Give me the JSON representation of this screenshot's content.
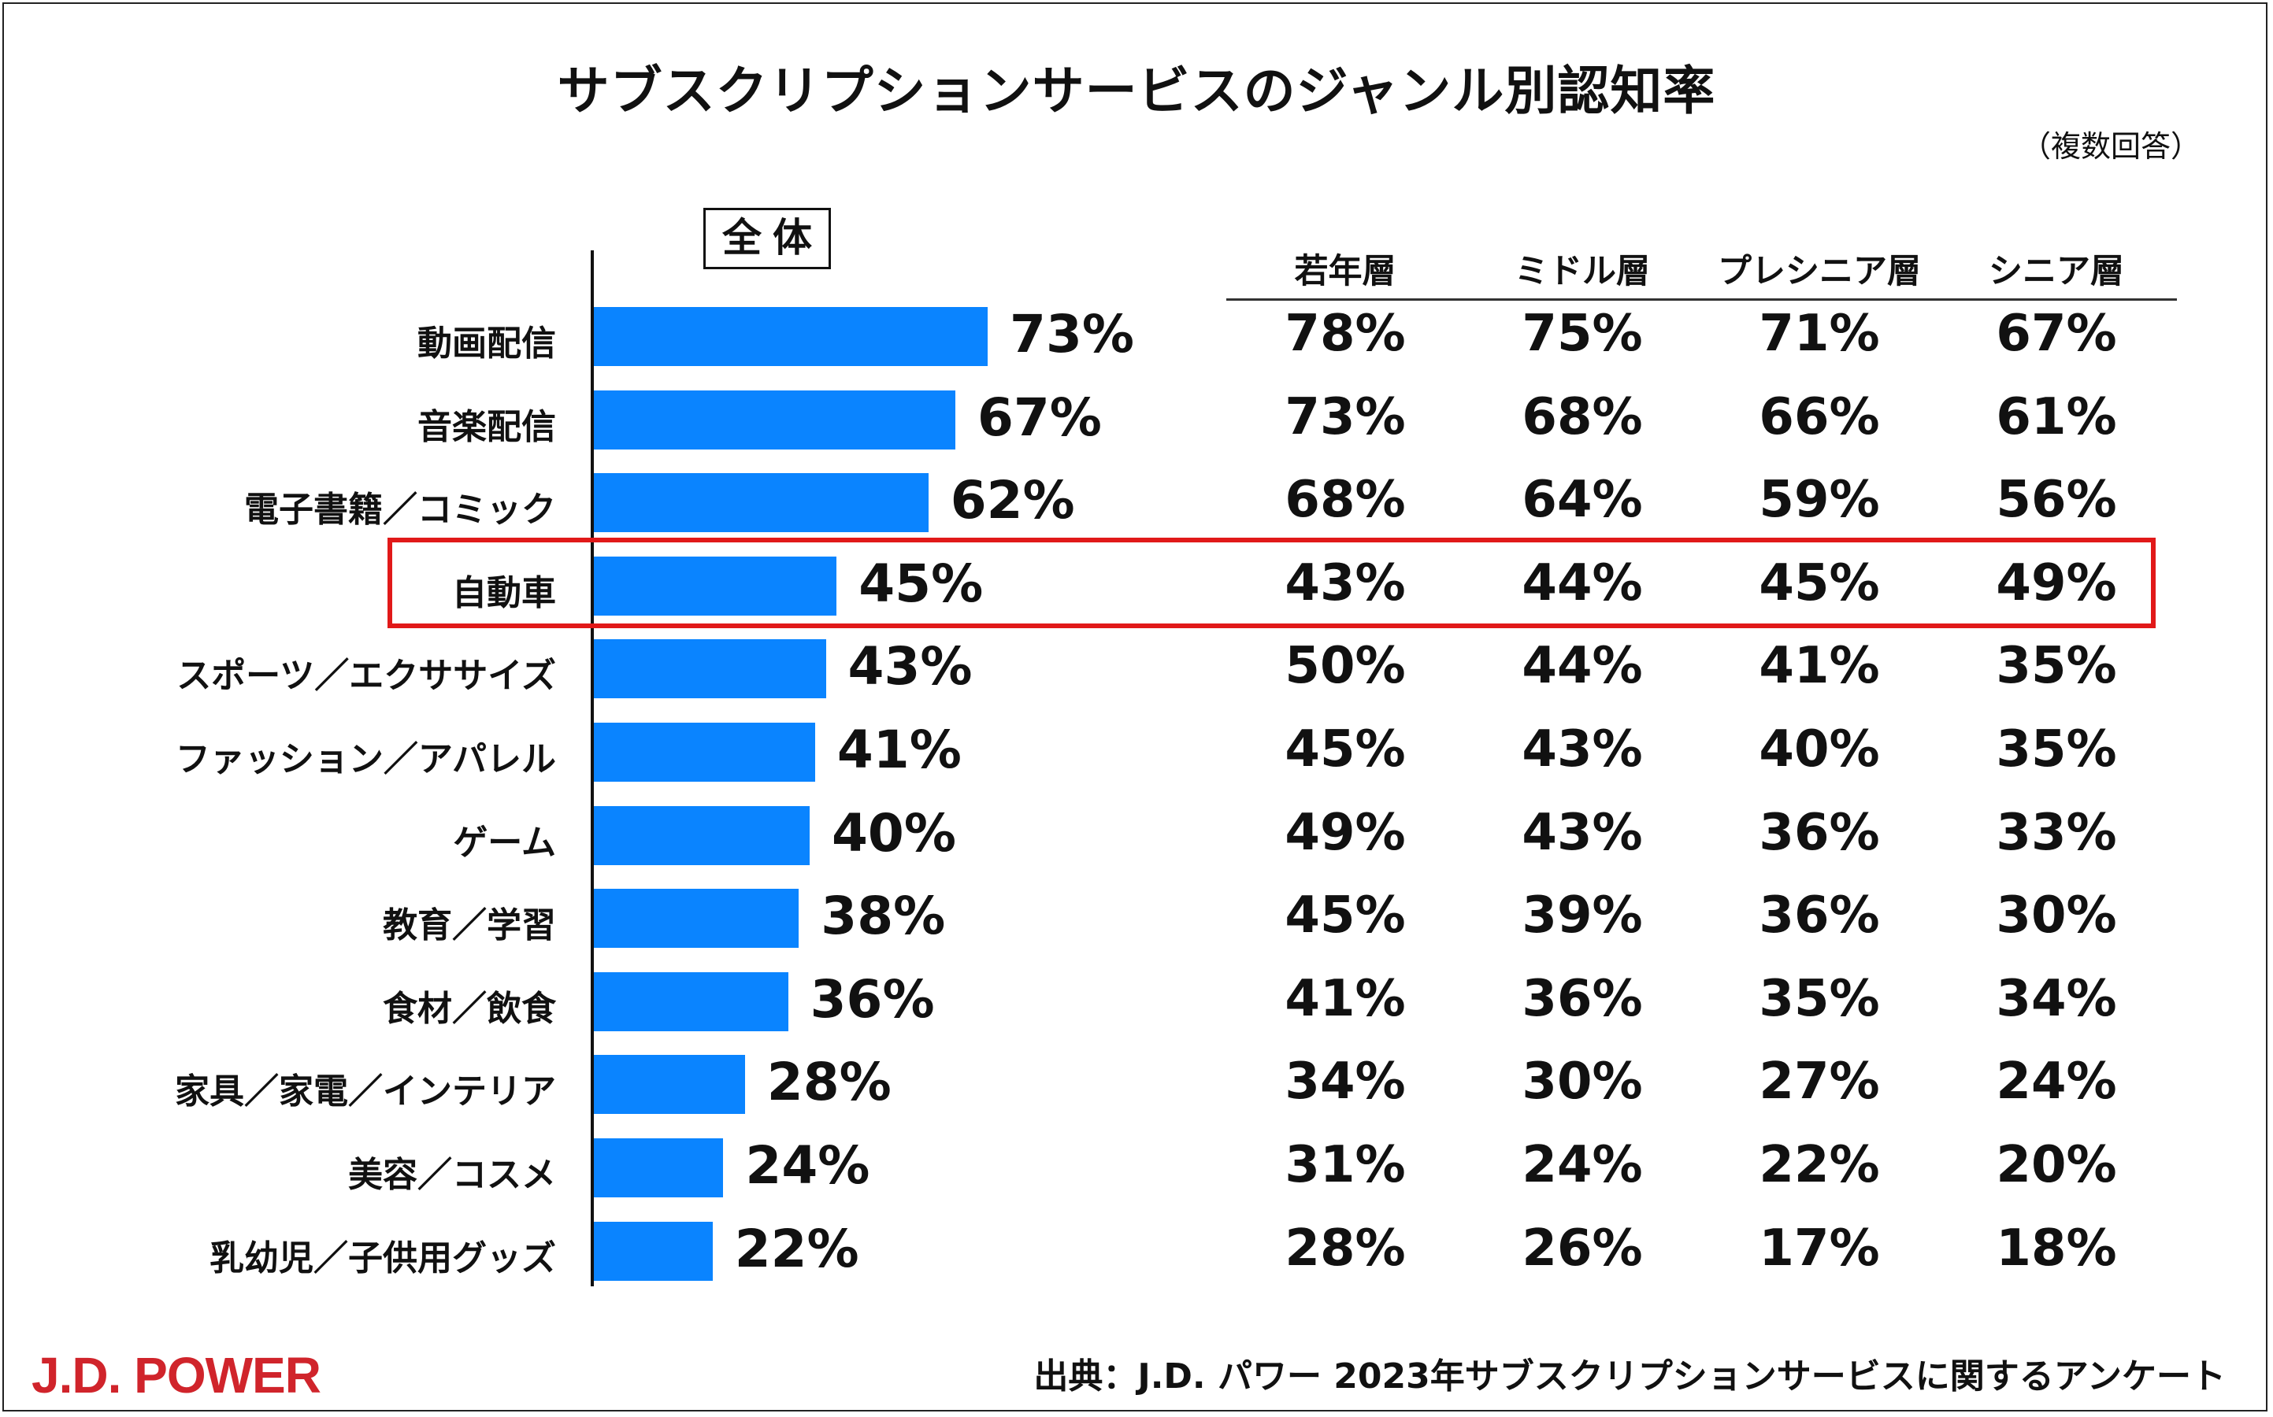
{
  "title": "サブスクリプションサービスのジャンル別認知率",
  "note": "（複数回答）",
  "overall_label": "全体",
  "columns": [
    "若年層",
    "ミドル層",
    "プレシニア層",
    "シニア層"
  ],
  "source": "出典：J.D. パワー 2023年サブスクリプションサービスに関するアンケート",
  "logo": "J.D. POWER",
  "colors": {
    "bar": "#0a84ff",
    "highlight": "#e11919",
    "logo": "#d0242b"
  },
  "highlight_index": 3,
  "chart_data": {
    "type": "bar",
    "orientation": "horizontal",
    "title": "サブスクリプションサービスのジャンル別認知率",
    "xlabel": "",
    "ylabel": "",
    "xlim": [
      0,
      100
    ],
    "unit": "%",
    "categories": [
      "動画配信",
      "音楽配信",
      "電子書籍／コミック",
      "自動車",
      "スポーツ／エクササイズ",
      "ファッション／アパレル",
      "ゲーム",
      "教育／学習",
      "食材／飲食",
      "家具／家電／インテリア",
      "美容／コスメ",
      "乳幼児／子供用グッズ"
    ],
    "values": [
      73,
      67,
      62,
      45,
      43,
      41,
      40,
      38,
      36,
      28,
      24,
      22
    ],
    "series": [
      {
        "name": "全体",
        "values": [
          73,
          67,
          62,
          45,
          43,
          41,
          40,
          38,
          36,
          28,
          24,
          22
        ]
      },
      {
        "name": "若年層",
        "values": [
          78,
          73,
          68,
          43,
          50,
          45,
          49,
          45,
          41,
          34,
          31,
          28
        ]
      },
      {
        "name": "ミドル層",
        "values": [
          75,
          68,
          64,
          44,
          44,
          43,
          43,
          39,
          36,
          30,
          24,
          26
        ]
      },
      {
        "name": "プレシニア層",
        "values": [
          71,
          66,
          59,
          45,
          41,
          40,
          36,
          36,
          35,
          27,
          22,
          17
        ]
      },
      {
        "name": "シニア層",
        "values": [
          67,
          61,
          56,
          49,
          35,
          35,
          33,
          30,
          34,
          24,
          20,
          18
        ]
      }
    ]
  }
}
